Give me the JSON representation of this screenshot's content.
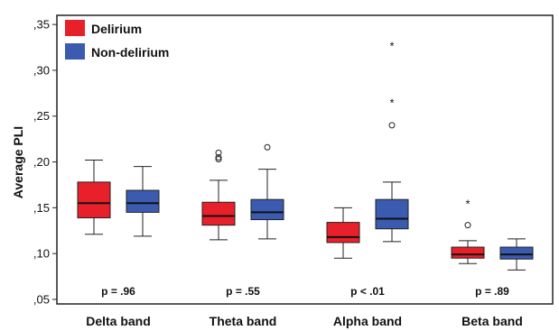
{
  "chart_data": {
    "type": "boxplot",
    "ylabel": "Average PLI",
    "ylim": [
      0.045,
      0.36
    ],
    "yticks": [
      {
        "value": 0.05,
        "label": ",05"
      },
      {
        "value": 0.1,
        "label": ",10"
      },
      {
        "value": 0.15,
        "label": ",15"
      },
      {
        "value": 0.2,
        "label": ",20"
      },
      {
        "value": 0.25,
        "label": ",25"
      },
      {
        "value": 0.3,
        "label": ",30"
      },
      {
        "value": 0.35,
        "label": ",35"
      }
    ],
    "categories": [
      "Delta band",
      "Theta band",
      "Alpha band",
      "Beta band"
    ],
    "p_values": [
      "p = .96",
      "p = .55",
      "p < .01",
      "p = .89"
    ],
    "legend": {
      "placement": "top-left",
      "entries": [
        {
          "label": "Delirium",
          "color": "#e8202a"
        },
        {
          "label": "Non-delirium",
          "color": "#3a5bb0"
        }
      ]
    },
    "series": [
      {
        "name": "Delirium",
        "color": "#e8202a",
        "boxes": [
          {
            "min": 0.121,
            "q1": 0.139,
            "median": 0.155,
            "q3": 0.178,
            "max": 0.202,
            "outliers": [],
            "extremes": []
          },
          {
            "min": 0.115,
            "q1": 0.131,
            "median": 0.141,
            "q3": 0.156,
            "max": 0.18,
            "outliers": [
              0.203,
              0.205,
              0.21
            ],
            "extremes": []
          },
          {
            "min": 0.095,
            "q1": 0.112,
            "median": 0.118,
            "q3": 0.134,
            "max": 0.15,
            "outliers": [],
            "extremes": []
          },
          {
            "min": 0.089,
            "q1": 0.095,
            "median": 0.099,
            "q3": 0.107,
            "max": 0.114,
            "outliers": [
              0.131
            ],
            "extremes": [
              0.155
            ]
          }
        ]
      },
      {
        "name": "Non-delirium",
        "color": "#3a5bb0",
        "boxes": [
          {
            "min": 0.119,
            "q1": 0.145,
            "median": 0.155,
            "q3": 0.169,
            "max": 0.195,
            "outliers": [],
            "extremes": []
          },
          {
            "min": 0.116,
            "q1": 0.137,
            "median": 0.145,
            "q3": 0.159,
            "max": 0.192,
            "outliers": [
              0.216
            ],
            "extremes": []
          },
          {
            "min": 0.113,
            "q1": 0.127,
            "median": 0.138,
            "q3": 0.159,
            "max": 0.178,
            "outliers": [
              0.24
            ],
            "extremes": [
              0.265,
              0.327
            ]
          },
          {
            "min": 0.082,
            "q1": 0.094,
            "median": 0.099,
            "q3": 0.107,
            "max": 0.116,
            "outliers": [],
            "extremes": []
          }
        ]
      }
    ]
  }
}
